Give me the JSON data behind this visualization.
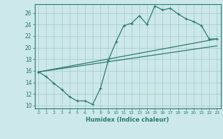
{
  "xlabel": "Humidex (Indice chaleur)",
  "background_color": "#cce8ea",
  "grid_color": "#aacdd2",
  "line_color": "#2a7a6a",
  "xlim": [
    -0.5,
    23.5
  ],
  "ylim": [
    9.5,
    27.5
  ],
  "xticks": [
    0,
    1,
    2,
    3,
    4,
    5,
    6,
    7,
    8,
    9,
    10,
    11,
    12,
    13,
    14,
    15,
    16,
    17,
    18,
    19,
    20,
    21,
    22,
    23
  ],
  "yticks": [
    10,
    12,
    14,
    16,
    18,
    20,
    22,
    24,
    26
  ],
  "curve1_x": [
    0,
    1,
    2,
    3,
    4,
    5,
    6,
    7,
    8,
    9,
    10,
    11,
    12,
    13,
    14,
    15,
    16,
    17,
    18,
    19,
    20,
    21,
    22,
    23
  ],
  "curve1_y": [
    15.8,
    15.0,
    13.8,
    12.8,
    11.5,
    10.8,
    10.8,
    10.2,
    13.0,
    17.8,
    21.0,
    23.8,
    24.2,
    25.5,
    24.0,
    27.2,
    26.5,
    26.8,
    25.8,
    25.0,
    24.5,
    23.8,
    21.5,
    21.5
  ],
  "curve2_x": [
    0,
    23
  ],
  "curve2_y": [
    15.8,
    21.5
  ],
  "curve3_x": [
    0,
    23
  ],
  "curve3_y": [
    15.8,
    20.3
  ]
}
